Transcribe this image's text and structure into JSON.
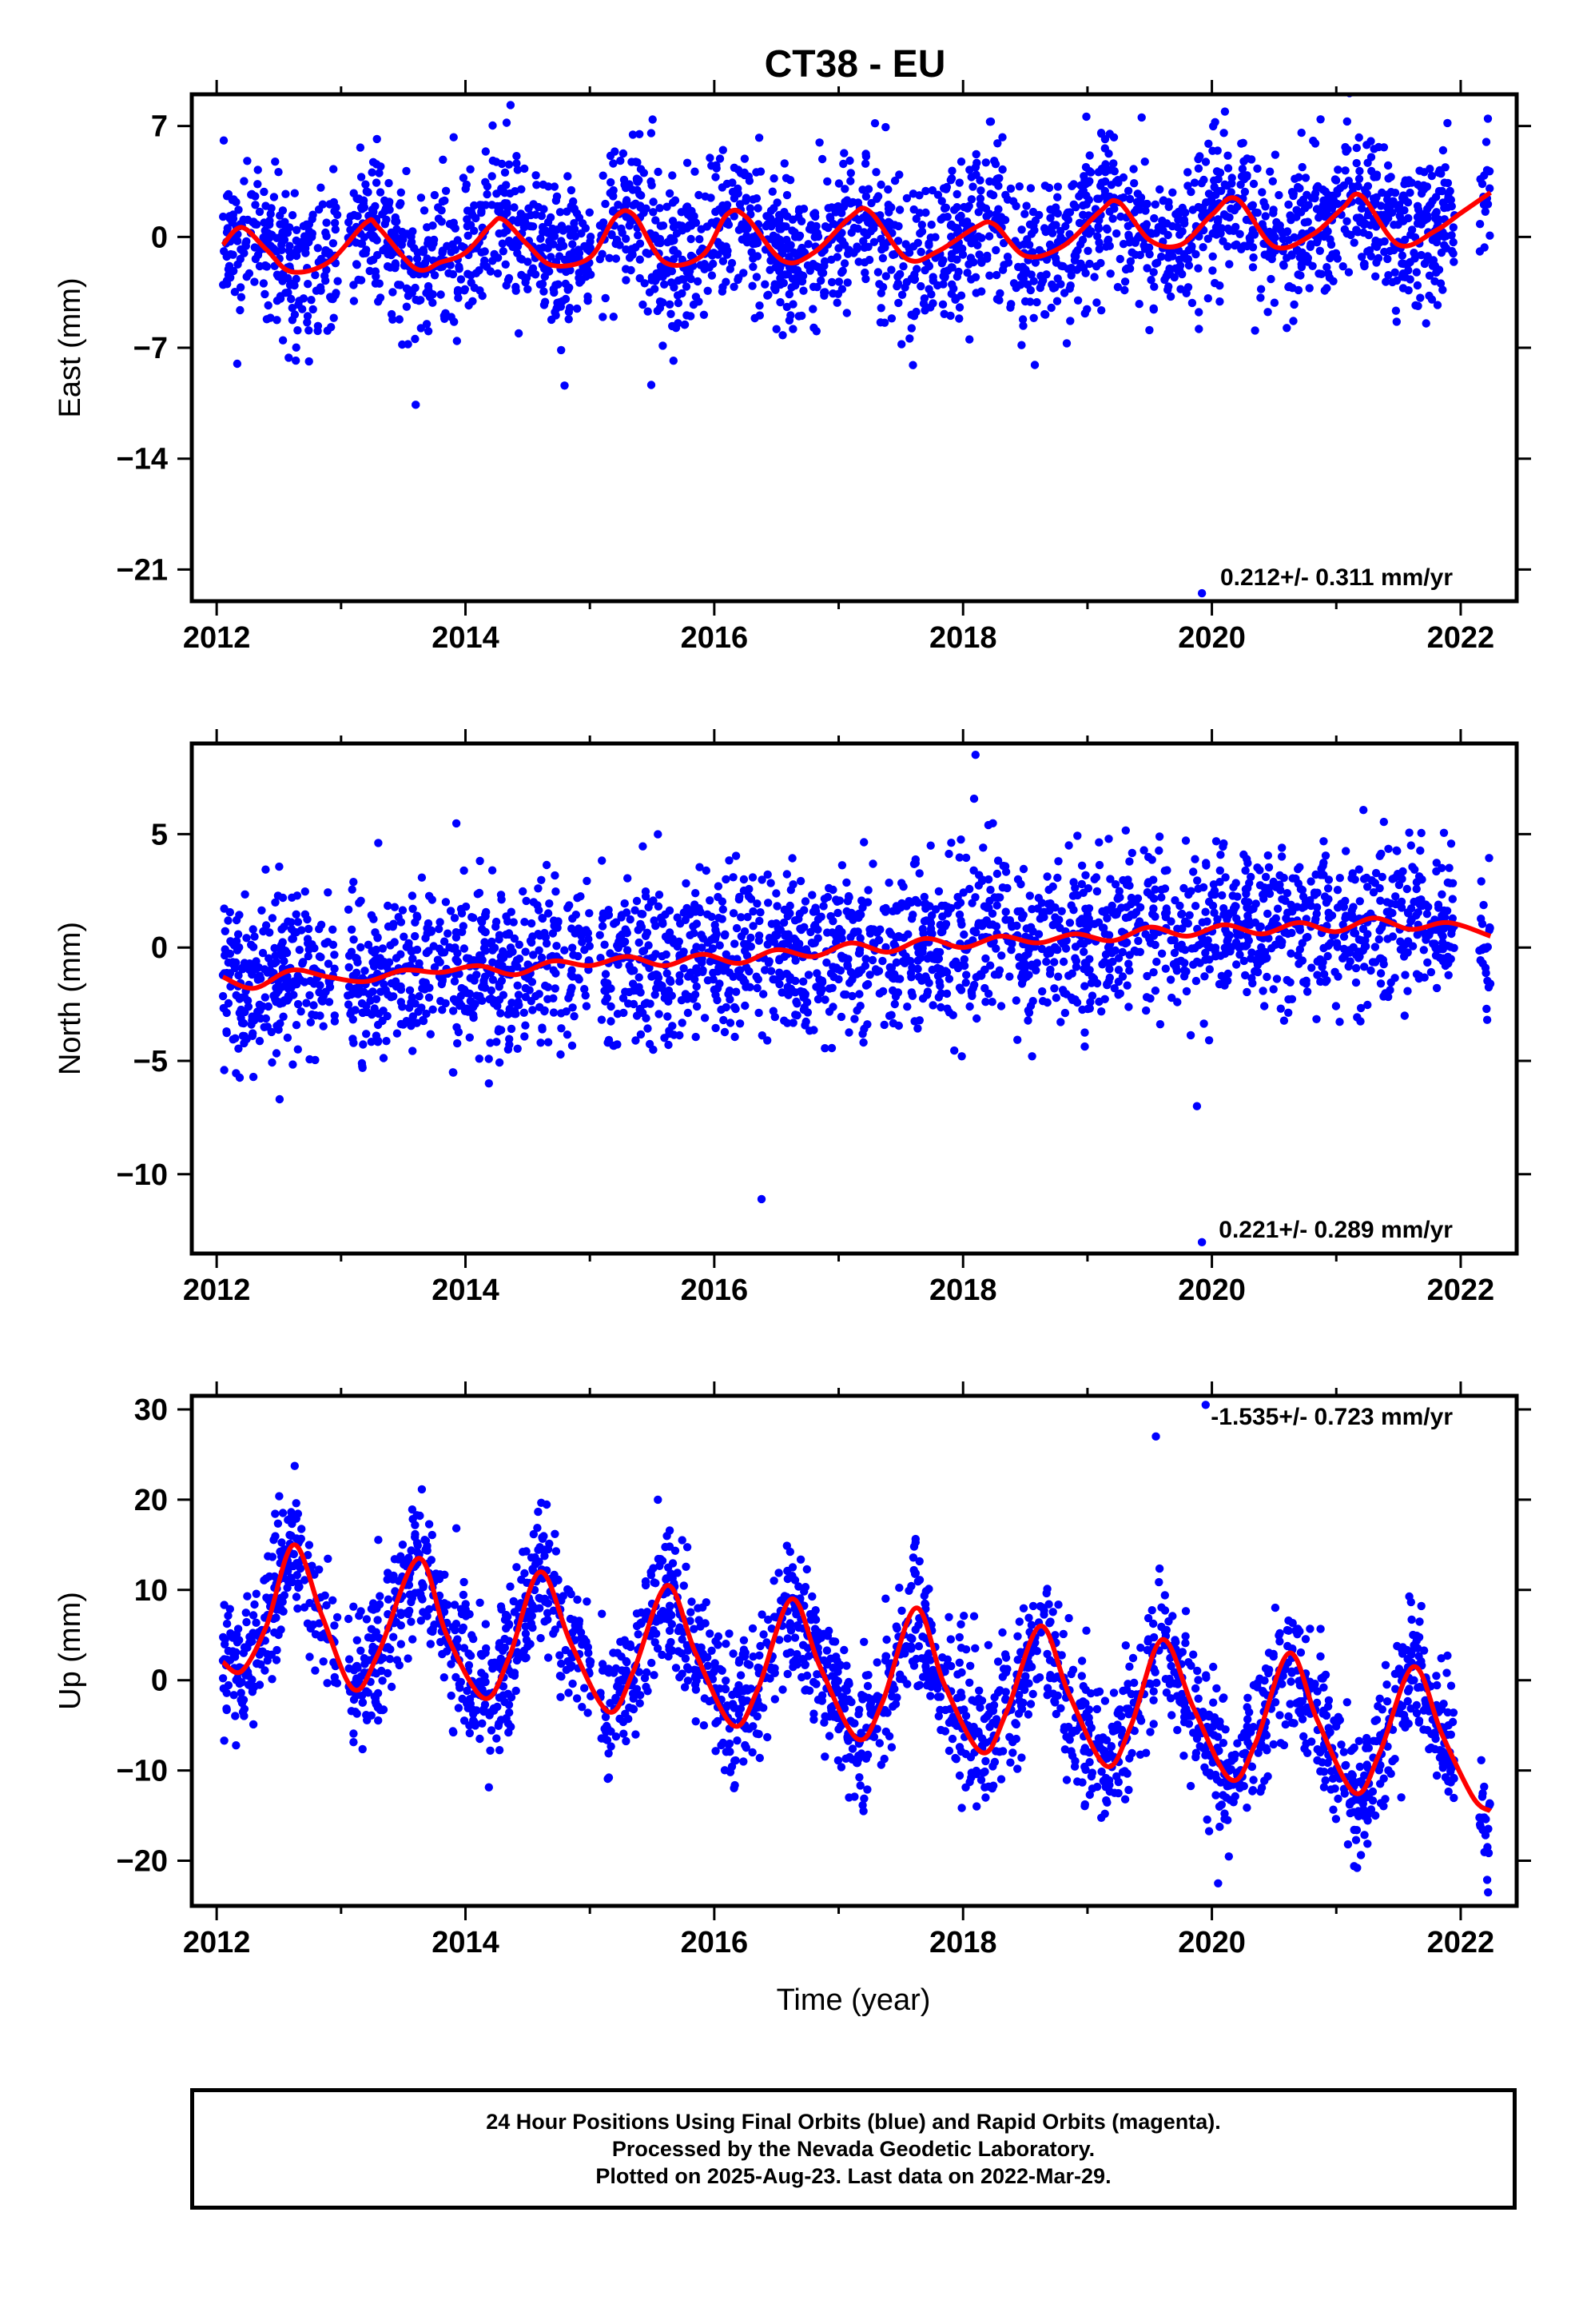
{
  "chart_data": {
    "type": "scatter",
    "title": "CT38 - EU",
    "xlabel": "Time (year)",
    "xlim": [
      2011.8,
      2022.45
    ],
    "x_ticks": [
      "2012",
      "2014",
      "2016",
      "2018",
      "2020",
      "2022"
    ],
    "grid": false,
    "data_start": 2012.05,
    "data_end": 2022.24,
    "colors": {
      "points": "#0000ff",
      "fit": "#ff0000",
      "frame": "#000000"
    },
    "series_names": [
      "Final Orbits (blue)",
      "Rapid Orbits (magenta)"
    ],
    "panels": [
      {
        "id": "east",
        "ylabel": "East (mm)",
        "ylim": [
          -23.0,
          9.0
        ],
        "yticks": [
          7,
          0,
          -7,
          -14,
          -21
        ],
        "rate_label": "0.212+/- 0.311 mm/yr",
        "rate_position": "bottom-right",
        "trend": {
          "slope": 0.212,
          "intercept": 0.0
        },
        "fit_model": {
          "annual_amp": 1.6,
          "annual_phase": 2.1,
          "semiannual_amp": 0.5
        },
        "scatter": {
          "noise": 2.4
        },
        "outliers": [
          {
            "x": 2019.92,
            "y": -22.5
          },
          {
            "x": 2013.6,
            "y": -10.6
          }
        ],
        "fit_curve": [
          [
            2012.05,
            -0.5
          ],
          [
            2012.2,
            0.6
          ],
          [
            2012.4,
            -0.8
          ],
          [
            2012.6,
            -2.2
          ],
          [
            2012.9,
            -1.6
          ],
          [
            2013.2,
            0.9
          ],
          [
            2013.3,
            0.6
          ],
          [
            2013.6,
            -2.0
          ],
          [
            2013.8,
            -1.6
          ],
          [
            2014.0,
            -1.0
          ],
          [
            2014.2,
            0.7
          ],
          [
            2014.3,
            1.1
          ],
          [
            2014.5,
            -0.5
          ],
          [
            2014.7,
            -1.8
          ],
          [
            2015.0,
            -1.3
          ],
          [
            2015.2,
            1.2
          ],
          [
            2015.35,
            1.4
          ],
          [
            2015.6,
            -1.6
          ],
          [
            2015.9,
            -1.2
          ],
          [
            2016.1,
            1.4
          ],
          [
            2016.25,
            1.3
          ],
          [
            2016.55,
            -1.5
          ],
          [
            2016.8,
            -1.0
          ],
          [
            2017.1,
            1.3
          ],
          [
            2017.25,
            1.6
          ],
          [
            2017.55,
            -1.4
          ],
          [
            2017.8,
            -0.9
          ],
          [
            2018.1,
            0.6
          ],
          [
            2018.25,
            0.8
          ],
          [
            2018.5,
            -1.2
          ],
          [
            2018.8,
            -0.6
          ],
          [
            2019.1,
            1.6
          ],
          [
            2019.25,
            2.2
          ],
          [
            2019.5,
            -0.2
          ],
          [
            2019.75,
            -0.5
          ],
          [
            2020.0,
            1.4
          ],
          [
            2020.2,
            2.4
          ],
          [
            2020.5,
            -0.6
          ],
          [
            2020.8,
            0.1
          ],
          [
            2021.05,
            1.8
          ],
          [
            2021.2,
            2.6
          ],
          [
            2021.5,
            -0.5
          ],
          [
            2021.8,
            0.4
          ],
          [
            2022.0,
            1.5
          ],
          [
            2022.24,
            2.8
          ]
        ]
      },
      {
        "id": "north",
        "ylabel": "North (mm)",
        "ylim": [
          -13.5,
          9.0
        ],
        "yticks": [
          5,
          0,
          -5,
          -10
        ],
        "rate_label": "0.221+/- 0.289 mm/yr",
        "rate_position": "bottom-right",
        "trend": {
          "slope": 0.221,
          "intercept": 0.0
        },
        "fit_model": {
          "annual_amp": 0.35,
          "annual_phase": 0.5,
          "semiannual_amp": 0.1
        },
        "scatter": {
          "noise": 1.8
        },
        "outliers": [
          {
            "x": 2019.92,
            "y": -13.0
          },
          {
            "x": 2019.88,
            "y": -7.0
          },
          {
            "x": 2016.38,
            "y": -11.1
          },
          {
            "x": 2018.1,
            "y": 8.5
          }
        ],
        "fit_curve": [
          [
            2012.05,
            -1.3
          ],
          [
            2012.3,
            -1.8
          ],
          [
            2012.6,
            -1.0
          ],
          [
            2012.9,
            -1.3
          ],
          [
            2013.2,
            -1.5
          ],
          [
            2013.5,
            -1.0
          ],
          [
            2013.8,
            -1.1
          ],
          [
            2014.1,
            -0.8
          ],
          [
            2014.4,
            -1.2
          ],
          [
            2014.7,
            -0.6
          ],
          [
            2015.0,
            -0.8
          ],
          [
            2015.3,
            -0.4
          ],
          [
            2015.6,
            -0.8
          ],
          [
            2015.9,
            -0.3
          ],
          [
            2016.2,
            -0.7
          ],
          [
            2016.5,
            -0.1
          ],
          [
            2016.8,
            -0.4
          ],
          [
            2017.1,
            0.2
          ],
          [
            2017.4,
            -0.2
          ],
          [
            2017.7,
            0.4
          ],
          [
            2018.0,
            0.0
          ],
          [
            2018.3,
            0.5
          ],
          [
            2018.6,
            0.2
          ],
          [
            2018.9,
            0.6
          ],
          [
            2019.2,
            0.3
          ],
          [
            2019.5,
            0.9
          ],
          [
            2019.8,
            0.5
          ],
          [
            2020.1,
            1.0
          ],
          [
            2020.4,
            0.6
          ],
          [
            2020.7,
            1.1
          ],
          [
            2021.0,
            0.7
          ],
          [
            2021.3,
            1.3
          ],
          [
            2021.6,
            0.8
          ],
          [
            2021.9,
            1.1
          ],
          [
            2022.24,
            0.5
          ]
        ]
      },
      {
        "id": "up",
        "ylabel": "Up (mm)",
        "ylim": [
          -25.0,
          31.5
        ],
        "yticks": [
          30,
          20,
          10,
          0,
          -10,
          -20
        ],
        "rate_label": "-1.535+/- 0.723 mm/yr",
        "rate_position": "top-right",
        "trend": {
          "slope": -1.535,
          "intercept": 0.0
        },
        "fit_model": {
          "annual_amp": 9.5,
          "annual_phase": -1.2,
          "semiannual_amp": 0.8
        },
        "scatter": {
          "noise": 3.8
        },
        "outliers": [
          {
            "x": 2019.95,
            "y": 30.5
          },
          {
            "x": 2022.22,
            "y": -23.5
          },
          {
            "x": 2020.05,
            "y": -22.5
          },
          {
            "x": 2019.55,
            "y": 27.0
          }
        ],
        "fit_curve": [
          [
            2012.05,
            2.0
          ],
          [
            2012.2,
            1.0
          ],
          [
            2012.4,
            6.0
          ],
          [
            2012.62,
            15.0
          ],
          [
            2012.85,
            7.0
          ],
          [
            2013.1,
            -1.0
          ],
          [
            2013.3,
            3.0
          ],
          [
            2013.62,
            13.5
          ],
          [
            2013.85,
            5.0
          ],
          [
            2014.15,
            -2.0
          ],
          [
            2014.35,
            2.5
          ],
          [
            2014.6,
            12.0
          ],
          [
            2014.85,
            4.0
          ],
          [
            2015.15,
            -3.5
          ],
          [
            2015.35,
            1.0
          ],
          [
            2015.62,
            10.5
          ],
          [
            2015.85,
            3.0
          ],
          [
            2016.15,
            -5.0
          ],
          [
            2016.35,
            -1.0
          ],
          [
            2016.62,
            9.0
          ],
          [
            2016.85,
            1.5
          ],
          [
            2017.15,
            -6.5
          ],
          [
            2017.35,
            -2.5
          ],
          [
            2017.62,
            8.0
          ],
          [
            2017.85,
            -0.5
          ],
          [
            2018.15,
            -8.0
          ],
          [
            2018.35,
            -3.5
          ],
          [
            2018.62,
            6.0
          ],
          [
            2018.85,
            -1.5
          ],
          [
            2019.15,
            -9.5
          ],
          [
            2019.35,
            -5.0
          ],
          [
            2019.6,
            4.5
          ],
          [
            2019.85,
            -3.0
          ],
          [
            2020.15,
            -11.0
          ],
          [
            2020.35,
            -7.0
          ],
          [
            2020.62,
            3.0
          ],
          [
            2020.85,
            -4.5
          ],
          [
            2021.15,
            -12.5
          ],
          [
            2021.35,
            -8.0
          ],
          [
            2021.62,
            1.5
          ],
          [
            2021.85,
            -6.0
          ],
          [
            2022.1,
            -13.0
          ],
          [
            2022.24,
            -14.5
          ]
        ]
      }
    ]
  },
  "footer": {
    "line1": "24 Hour Positions Using Final Orbits (blue) and Rapid Orbits (magenta).",
    "line2": "Processed by the Nevada Geodetic Laboratory.",
    "line3": "Plotted on 2025-Aug-23. Last data on 2022-Mar-29."
  }
}
